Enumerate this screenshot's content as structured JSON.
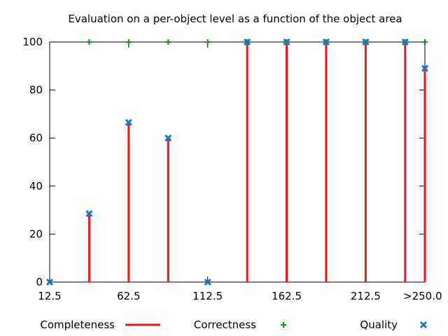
{
  "chart_data": {
    "type": "line",
    "title": "Evaluation on a per-object level as a function of the object area",
    "xlabel": "",
    "ylabel": "",
    "x": [
      12.5,
      37.5,
      62.5,
      87.5,
      112.5,
      137.5,
      162.5,
      187.5,
      212.5,
      237.5,
      250
    ],
    "xlim": [
      12.5,
      250
    ],
    "x_ticks": [
      {
        "value": 12.5,
        "label": "12.5"
      },
      {
        "value": 62.5,
        "label": "62.5"
      },
      {
        "value": 112.5,
        "label": "112.5"
      },
      {
        "value": 162.5,
        "label": "162.5"
      },
      {
        "value": 212.5,
        "label": "212.5"
      },
      {
        "value": 250,
        "label": ">250.0"
      }
    ],
    "ylim": [
      0,
      100
    ],
    "y_ticks": [
      {
        "value": 0,
        "label": "0"
      },
      {
        "value": 20,
        "label": "20"
      },
      {
        "value": 40,
        "label": "40"
      },
      {
        "value": 60,
        "label": "60"
      },
      {
        "value": 80,
        "label": "80"
      },
      {
        "value": 100,
        "label": "100"
      }
    ],
    "grid": false,
    "legend_position": "bottom",
    "series": [
      {
        "name": "Completeness",
        "style": "impulses",
        "color": "#e41a1c",
        "values": [
          0,
          28,
          66,
          60,
          0,
          100,
          100,
          100,
          100,
          100,
          89
        ]
      },
      {
        "name": "Correctness",
        "style": "points",
        "marker": "plus",
        "color": "#00a000",
        "values": [
          null,
          100,
          100,
          100,
          100,
          100,
          100,
          100,
          100,
          100,
          100
        ]
      },
      {
        "name": "Quality",
        "style": "points",
        "marker": "x",
        "color": "#1a75cf",
        "values": [
          0,
          28.5,
          66.5,
          60,
          0,
          100,
          100,
          100,
          100,
          100,
          89
        ]
      }
    ]
  }
}
